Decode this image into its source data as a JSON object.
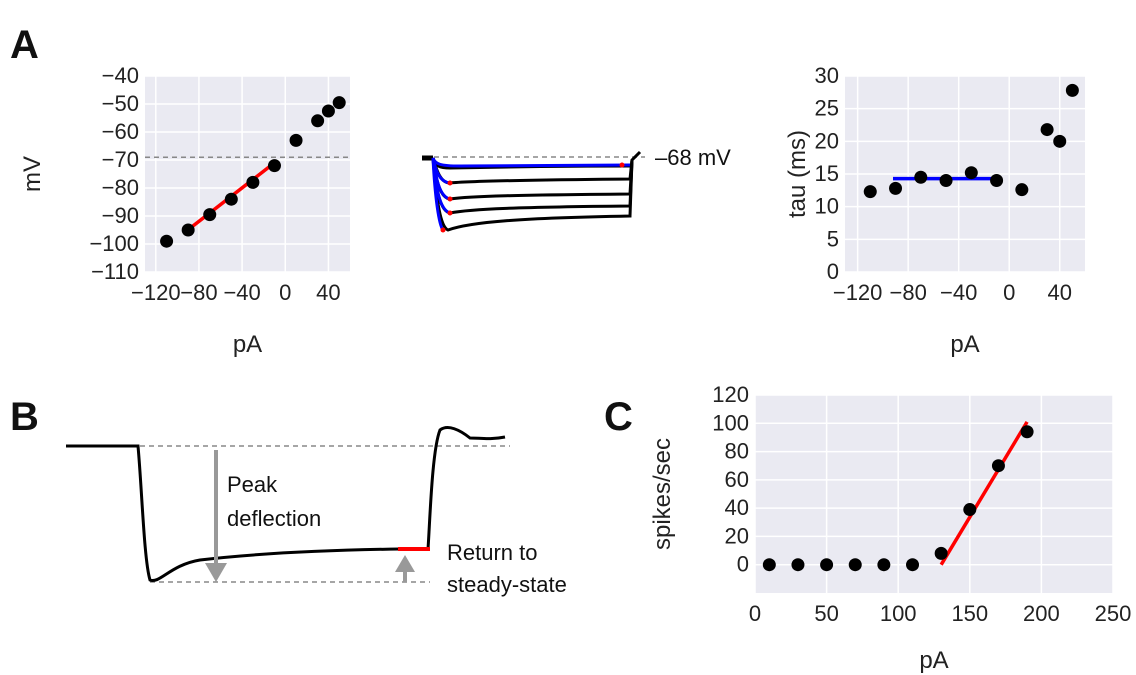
{
  "panel_labels": {
    "a": "A",
    "b": "B",
    "c": "C"
  },
  "colors": {
    "plot_bg": "#eaeaf2",
    "grid": "#ffffff",
    "point": "#000000",
    "fit_red": "#ff0000",
    "fit_blue": "#0000ff",
    "ref_dashed": "#888888",
    "arrow": "#999999"
  },
  "panelB": {
    "peak_label_1": "Peak",
    "peak_label_2": "deflection",
    "return_label_1": "Return to",
    "return_label_2": "steady-state"
  },
  "traces_annotation": "–68 mV",
  "chart_data": [
    {
      "id": "A-left",
      "type": "scatter",
      "xlabel": "pA",
      "ylabel": "mV",
      "xlim": [
        -130,
        60
      ],
      "ylim": [
        -110,
        -40
      ],
      "xticks": [
        -120,
        -80,
        -40,
        0,
        40
      ],
      "xtick_labels": [
        "−120",
        "−80",
        "−40",
        "0",
        "40"
      ],
      "yticks": [
        -110,
        -100,
        -90,
        -80,
        -70,
        -60,
        -50,
        -40
      ],
      "ytick_labels": [
        "−110",
        "−100",
        "−90",
        "−80",
        "−70",
        "−60",
        "−50",
        "−40"
      ],
      "grid": true,
      "points": {
        "x": [
          -110,
          -90,
          -70,
          -50,
          -30,
          -10,
          10,
          30,
          40,
          50
        ],
        "y": [
          -99,
          -95,
          -89.5,
          -84,
          -78,
          -72,
          -63,
          -56,
          -52.5,
          -49.5
        ]
      },
      "fit": {
        "x": [
          -92,
          -10
        ],
        "y": [
          -95.5,
          -71
        ]
      },
      "reference_y": -69
    },
    {
      "id": "A-right",
      "type": "scatter",
      "xlabel": "pA",
      "ylabel": "tau (ms)",
      "xlim": [
        -130,
        60
      ],
      "ylim": [
        0,
        30
      ],
      "xticks": [
        -120,
        -80,
        -40,
        0,
        40
      ],
      "xtick_labels": [
        "−120",
        "−80",
        "−40",
        "0",
        "40"
      ],
      "yticks": [
        0,
        5,
        10,
        15,
        20,
        25,
        30
      ],
      "ytick_labels": [
        "0",
        "5",
        "10",
        "15",
        "20",
        "25",
        "30"
      ],
      "grid": true,
      "points": {
        "x": [
          -110,
          -90,
          -70,
          -50,
          -30,
          -10,
          10,
          30,
          40,
          50
        ],
        "y": [
          12.3,
          12.8,
          14.5,
          14,
          15.2,
          14,
          12.6,
          21.8,
          20,
          27.8
        ]
      },
      "fit": {
        "x": [
          -92,
          -10
        ],
        "y": [
          14.3,
          14.3
        ]
      }
    },
    {
      "id": "C",
      "type": "scatter",
      "xlabel": "pA",
      "ylabel": "spikes/sec",
      "xlim": [
        0,
        250
      ],
      "ylim": [
        -20,
        120
      ],
      "xticks": [
        0,
        50,
        100,
        150,
        200,
        250
      ],
      "xtick_labels": [
        "0",
        "50",
        "100",
        "150",
        "200",
        "250"
      ],
      "yticks": [
        0,
        20,
        40,
        60,
        80,
        100,
        120
      ],
      "ytick_labels": [
        "0",
        "20",
        "40",
        "60",
        "80",
        "100",
        "120"
      ],
      "grid": true,
      "points": {
        "x": [
          10,
          30,
          50,
          70,
          90,
          110,
          130,
          150,
          170,
          190
        ],
        "y": [
          0,
          0,
          0,
          0,
          0,
          0,
          8,
          39,
          70,
          94
        ]
      },
      "fit": {
        "x": [
          130,
          190
        ],
        "y": [
          0,
          101
        ]
      }
    }
  ]
}
